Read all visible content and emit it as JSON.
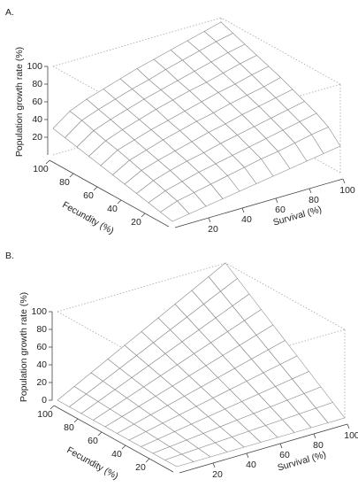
{
  "chart_data": [
    {
      "type": "surface",
      "title": "A.",
      "zlabel": "Population growth rate (%)",
      "xlabel": "Survival (%)",
      "ylabel": "Fecundity (%)",
      "x": [
        0,
        10,
        20,
        30,
        40,
        50,
        60,
        70,
        80,
        90,
        100
      ],
      "y": [
        0,
        10,
        20,
        30,
        40,
        50,
        60,
        70,
        80,
        90,
        100
      ],
      "z": [
        [
          0,
          3,
          6,
          9,
          12,
          15,
          18,
          21,
          24,
          27,
          30
        ],
        [
          3,
          10,
          14,
          18,
          22,
          26,
          30,
          33,
          37,
          41,
          44
        ],
        [
          6,
          14,
          19,
          24,
          28,
          32,
          36,
          40,
          44,
          48,
          52
        ],
        [
          9,
          18,
          24,
          29,
          33,
          38,
          42,
          46,
          50,
          54,
          58
        ],
        [
          12,
          22,
          28,
          33,
          38,
          43,
          47,
          52,
          56,
          60,
          64
        ],
        [
          15,
          26,
          32,
          38,
          43,
          48,
          52,
          57,
          61,
          65,
          70
        ],
        [
          18,
          30,
          36,
          42,
          47,
          52,
          57,
          62,
          66,
          71,
          75
        ],
        [
          21,
          33,
          40,
          46,
          52,
          57,
          62,
          66,
          71,
          76,
          80
        ],
        [
          24,
          37,
          44,
          50,
          56,
          61,
          66,
          71,
          76,
          81,
          85
        ],
        [
          27,
          41,
          48,
          54,
          60,
          65,
          71,
          76,
          81,
          86,
          90
        ],
        [
          30,
          44,
          52,
          58,
          64,
          70,
          75,
          80,
          85,
          90,
          95
        ]
      ],
      "xlim": [
        0,
        100
      ],
      "ylim": [
        0,
        100
      ],
      "zlim": [
        0,
        100
      ],
      "xticks": [
        20,
        40,
        60,
        80,
        100
      ],
      "yticks": [
        20,
        40,
        60,
        80,
        100
      ],
      "zticks": [
        20,
        40,
        60,
        80,
        100
      ],
      "color": "#8a8a8a"
    },
    {
      "type": "surface",
      "title": "B.",
      "zlabel": "Population growth rate (%)",
      "xlabel": "Survival (%)",
      "ylabel": "Fecundity (%)",
      "x": [
        0,
        10,
        20,
        30,
        40,
        50,
        60,
        70,
        80,
        90,
        100
      ],
      "y": [
        0,
        10,
        20,
        30,
        40,
        50,
        60,
        70,
        80,
        90,
        100
      ],
      "z": [
        [
          0,
          0,
          0,
          0,
          0,
          0,
          0,
          0,
          0,
          0,
          0
        ],
        [
          0,
          1,
          2,
          3,
          4,
          5,
          6,
          7,
          8,
          9,
          10
        ],
        [
          0,
          2,
          4,
          6,
          8,
          10,
          12,
          14,
          16,
          18,
          20
        ],
        [
          0,
          3,
          6,
          9,
          12,
          15,
          18,
          21,
          24,
          27,
          30
        ],
        [
          0,
          4,
          8,
          12,
          16,
          20,
          24,
          28,
          32,
          36,
          40
        ],
        [
          0,
          5,
          10,
          15,
          20,
          25,
          30,
          35,
          40,
          45,
          50
        ],
        [
          0,
          6,
          12,
          18,
          24,
          30,
          36,
          42,
          48,
          54,
          60
        ],
        [
          0,
          7,
          14,
          21,
          28,
          35,
          42,
          49,
          56,
          63,
          70
        ],
        [
          0,
          8,
          16,
          24,
          32,
          40,
          48,
          56,
          64,
          72,
          80
        ],
        [
          0,
          9,
          18,
          27,
          36,
          45,
          54,
          63,
          72,
          81,
          90
        ],
        [
          0,
          10,
          20,
          30,
          40,
          50,
          60,
          70,
          80,
          90,
          100
        ]
      ],
      "xlim": [
        0,
        100
      ],
      "ylim": [
        0,
        100
      ],
      "zlim": [
        0,
        100
      ],
      "xticks": [
        20,
        40,
        60,
        80,
        100
      ],
      "yticks": [
        20,
        40,
        60,
        80,
        100
      ],
      "zticks": [
        0,
        20,
        40,
        60,
        80,
        100
      ],
      "color": "#8a8a8a"
    }
  ]
}
